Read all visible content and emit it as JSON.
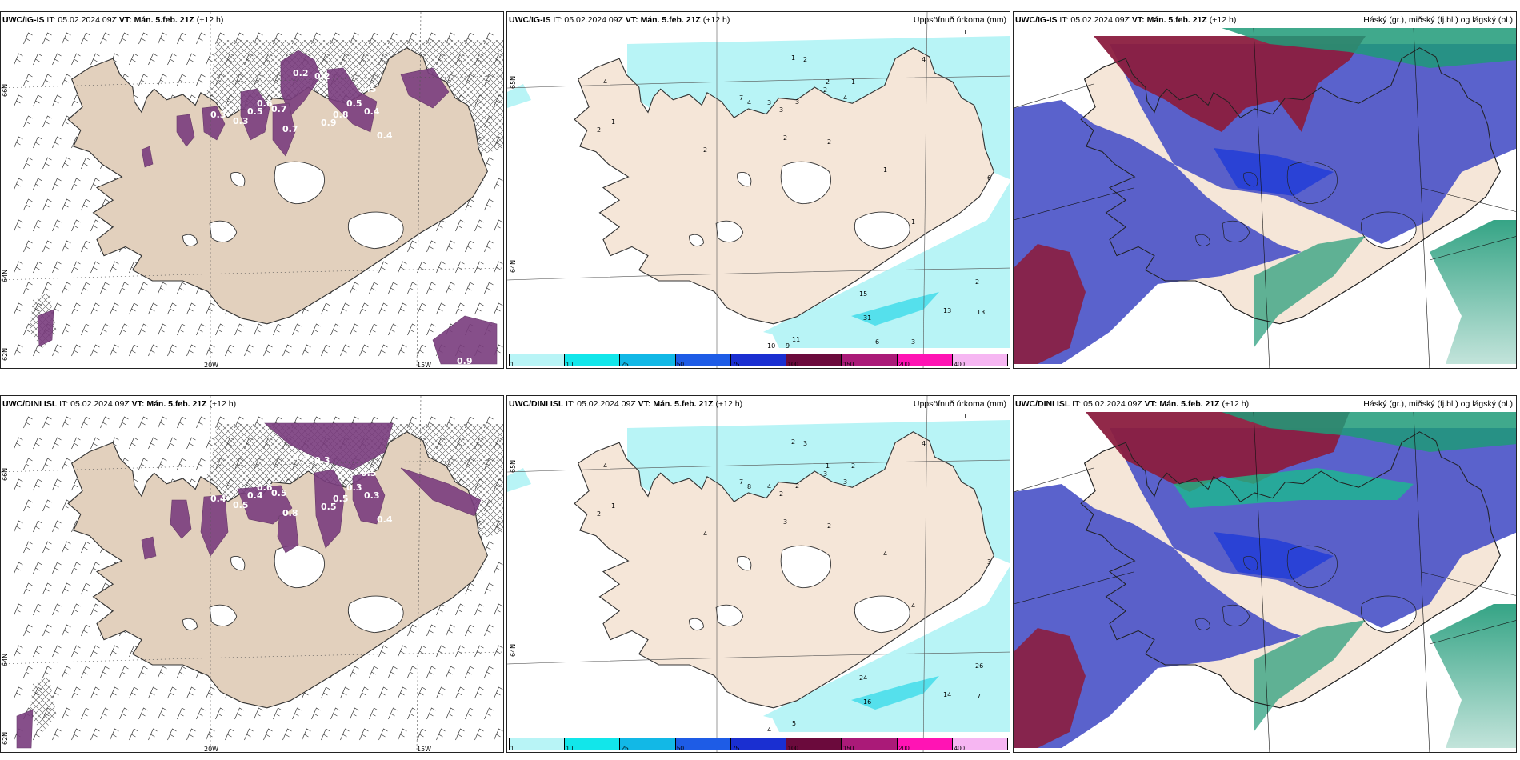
{
  "rows": [
    {
      "wind": {
        "title_model": "UWC/IG-IS",
        "title_it": " IT: 05.02.2024 09Z ",
        "title_vt": "VT: Mán. 5.feb. 21Z",
        "title_lead": " (+12 h)",
        "lat_labels": [
          "66N",
          "64N",
          "62N"
        ],
        "lon_labels": [
          "20W",
          "15W"
        ],
        "values": [
          "0.2",
          "0.2",
          "0.5",
          "0.6",
          "0.7",
          "0.4",
          "0.5",
          "0.9",
          "0.8",
          "0.3",
          "0.5",
          "0.3",
          "0.7",
          "0.4",
          "0.9"
        ]
      },
      "precip": {
        "title_model": "UWC/IG-IS",
        "title_it": " IT: 05.02.2024 09Z ",
        "title_vt": "VT: Mán. 5.feb. 21Z",
        "title_lead": " (+12 h)",
        "right_title": "Uppsöfnuð úrkoma (mm)",
        "lat_labels": [
          "65N",
          "64N"
        ],
        "values": [
          "1",
          "1",
          "2",
          "2",
          "1",
          "4",
          "4",
          "7",
          "4",
          "3",
          "2",
          "4",
          "3",
          "3",
          "2",
          "2",
          "1",
          "2",
          "6",
          "2",
          "1",
          "1",
          "2",
          "15",
          "31",
          "13",
          "13",
          "11",
          "10",
          "9",
          "6",
          "3"
        ],
        "colorbar": [
          "1",
          "10",
          "25",
          "50",
          "75",
          "100",
          "150",
          "200",
          "400"
        ]
      },
      "clouds": {
        "title_model": "UWC/IG-IS",
        "title_it": " IT: 05.02.2024 09Z ",
        "title_vt": "VT: Mán. 5.feb. 21Z",
        "title_lead": " (+12 h)",
        "right_title": "Háský (gr.), miðský (fj.bl.) og lágský (bl.)"
      }
    },
    {
      "wind": {
        "title_model": "UWC/DINI ISL",
        "title_it": " IT: 05.02.2024 09Z ",
        "title_vt": "VT: Mán. 5.feb. 21Z",
        "title_lead": " (+12 h)",
        "lat_labels": [
          "66N",
          "64N",
          "62N"
        ],
        "lon_labels": [
          "20W",
          "15W"
        ],
        "values": [
          "0.3",
          "0.3",
          "0.5",
          "0.6",
          "0.5",
          "0.3",
          "0.4",
          "0.5",
          "0.5",
          "0.4",
          "0.3",
          "0.5",
          "0.8",
          "0.4",
          "0.4"
        ]
      },
      "precip": {
        "title_model": "UWC/DINI ISL",
        "title_it": " IT: 05.02.2024 09Z ",
        "title_vt": "VT: Mán. 5.feb. 21Z",
        "title_lead": " (+12 h)",
        "right_title": "Uppsöfnuð úrkoma (mm)",
        "lat_labels": [
          "65N",
          "64N"
        ],
        "values": [
          "1",
          "2",
          "3",
          "1",
          "2",
          "4",
          "4",
          "7",
          "8",
          "4",
          "3",
          "3",
          "2",
          "2",
          "3",
          "2",
          "1",
          "2",
          "3",
          "4",
          "4",
          "4",
          "26",
          "24",
          "16",
          "14",
          "7",
          "5",
          "4"
        ],
        "colorbar": [
          "1",
          "10",
          "25",
          "50",
          "75",
          "100",
          "150",
          "200",
          "400"
        ]
      },
      "clouds": {
        "title_model": "UWC/DINI ISL",
        "title_it": " IT: 05.02.2024 09Z ",
        "title_vt": "VT: Mán. 5.feb. 21Z",
        "title_lead": " (+12 h)",
        "right_title": "Háský (gr.), miðský (fj.bl.) og lágský (bl.)"
      }
    }
  ],
  "colors": {
    "land": "#f5e6d8",
    "land_wind": "#e2d0bd",
    "precip_light": "#b8f4f6",
    "precip_mid": "#55e0ec",
    "cloud_low": "#4c55c8",
    "cloud_mid": "#8b1e3f",
    "cloud_high": "#1f9a78",
    "ice": "#ffffff",
    "colorbar": [
      "#b8f4f6",
      "#12e6ea",
      "#12b8e6",
      "#1e5ce6",
      "#1a2fd1",
      "#6b0a3c",
      "#aa1a78",
      "#ff14b4",
      "#f6b6f2"
    ]
  }
}
